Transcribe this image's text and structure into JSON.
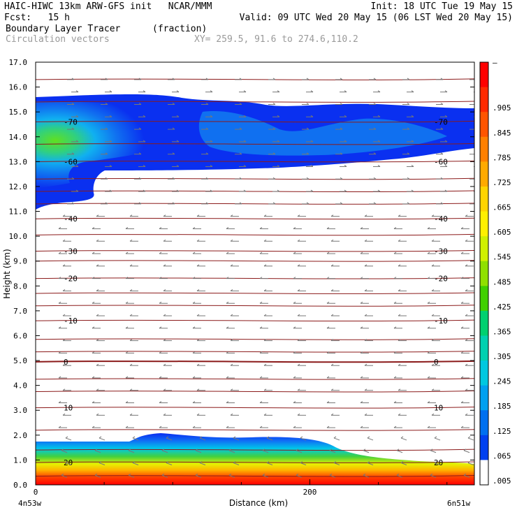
{
  "header": {
    "line1_left": "HAIC-HIWC 13km ARW-GFS init   NCAR/MMM",
    "line1_right": "Init: 18 UTC Tue 19 May 15",
    "line2_left": "Fcst:   15 h",
    "line2_right": "Valid: 09 UTC Wed 20 May 15 (06 LST Wed 20 May 15)",
    "field_name": "Boundary Layer Tracer",
    "field_units": "(fraction)",
    "vectors_label": "Circulation vectors",
    "xy_label": "XY= 259.5, 91.6 to 274.6,110.2"
  },
  "chart_data": {
    "type": "cross-section",
    "ylabel": "Height (km)",
    "xlabel": "Distance (km)",
    "ylim": [
      0,
      17
    ],
    "y_ticks": [
      "0.0",
      "1.0",
      "2.0",
      "3.0",
      "4.0",
      "5.0",
      "6.0",
      "7.0",
      "8.0",
      "9.0",
      "10.0",
      "11.0",
      "12.0",
      "13.0",
      "14.0",
      "15.0",
      "16.0",
      "17.0"
    ],
    "x_ticks": [
      {
        "value": 0,
        "label": "0"
      },
      {
        "value": 200,
        "label": "200"
      }
    ],
    "x_range_km": [
      0,
      320
    ],
    "left_end_label": "4n53w",
    "right_end_label": "6n51w",
    "colorbar": {
      "labels": [
        "–",
        ".905",
        ".845",
        ".785",
        ".725",
        ".665",
        ".605",
        ".545",
        ".485",
        ".425",
        ".365",
        ".305",
        ".245",
        ".185",
        ".125",
        ".065",
        ".005"
      ],
      "colors": [
        "#ff0000",
        "#ff2a00",
        "#ff5500",
        "#ff8000",
        "#ffaa00",
        "#ffd400",
        "#fff000",
        "#d0f000",
        "#90e000",
        "#40d000",
        "#00d070",
        "#00d0b0",
        "#00c8e0",
        "#00a0f0",
        "#0070f0",
        "#0040f0",
        "#ffffff"
      ]
    },
    "contours": [
      {
        "label": "-70",
        "height_km": 14.6
      },
      {
        "label": "-60",
        "height_km": 13.0
      },
      {
        "label": "-40",
        "height_km": 10.7
      },
      {
        "label": "-30",
        "height_km": 9.4
      },
      {
        "label": "-20",
        "height_km": 8.3
      },
      {
        "label": "-10",
        "height_km": 6.6
      },
      {
        "label": "0",
        "height_km": 4.95
      },
      {
        "label": "10",
        "height_km": 3.1
      },
      {
        "label": "20",
        "height_km": 0.9
      }
    ],
    "tracer_layers": [
      {
        "name": "upper",
        "bottom_km": 12.5,
        "top_km": 15.6
      },
      {
        "name": "boundary-layer",
        "bottom_km": 0.0,
        "top_km": 1.7
      }
    ]
  }
}
